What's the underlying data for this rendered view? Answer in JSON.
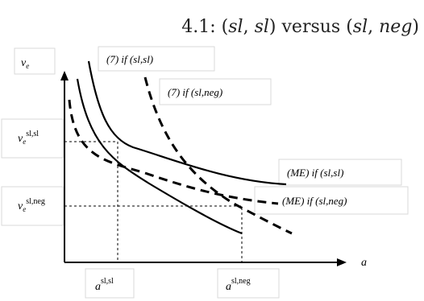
{
  "title": {
    "prefix": "4.1: ",
    "p1a": "sl",
    "p1b": "sl",
    "mid": " versus ",
    "p2a": "sl",
    "p2b": "neg"
  },
  "labels": {
    "y_axis": "v",
    "y_axis_sub": "e",
    "x_axis": "a",
    "curve_7_slsl": "(7) if (sl,sl)",
    "curve_7_slneg": "(7) if (sl,neg)",
    "curve_me_slsl": "(ME) if (sl,sl)",
    "curve_me_slneg": "(ME) if (sl,neg)",
    "ve_slsl": "v",
    "ve_slsl_sub": "e",
    "ve_slsl_sup": "sl,sl",
    "ve_slneg": "v",
    "ve_slneg_sub": "e",
    "ve_slneg_sup": "sl,neg",
    "a_slsl": "a",
    "a_slsl_sup": "sl,sl",
    "a_slneg": "a",
    "a_slneg_sup": "sl,neg"
  }
}
